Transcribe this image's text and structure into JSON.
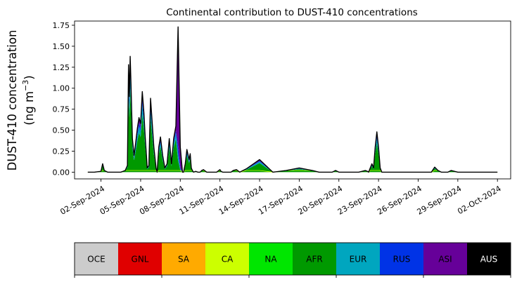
{
  "chart_data": {
    "type": "area",
    "stacked": true,
    "title": "Continental contribution to DUST-410 concentrations",
    "ylabel_line1": "DUST-410 concentration",
    "ylabel_line2_prefix": "(ng m",
    "ylabel_line2_sup": "−3",
    "ylabel_line2_suffix": ")",
    "xlabel": "",
    "ylim": [
      -0.08,
      1.8
    ],
    "yticks": [
      0.0,
      0.25,
      0.5,
      0.75,
      1.0,
      1.25,
      1.5,
      1.75
    ],
    "ytick_labels": [
      "0.00",
      "0.25",
      "0.50",
      "0.75",
      "1.00",
      "1.25",
      "1.50",
      "1.75"
    ],
    "x_start": "2024-08-31",
    "x_end": "2024-10-03",
    "xticks": [
      "2024-09-02",
      "2024-09-05",
      "2024-09-08",
      "2024-09-11",
      "2024-09-14",
      "2024-09-17",
      "2024-09-20",
      "2024-09-23",
      "2024-09-26",
      "2024-09-29",
      "2024-10-02"
    ],
    "xtick_labels": [
      "02-Sep-2024",
      "05-Sep-2024",
      "08-Sep-2024",
      "11-Sep-2024",
      "14-Sep-2024",
      "17-Sep-2024",
      "20-Sep-2024",
      "23-Sep-2024",
      "26-Sep-2024",
      "29-Sep-2024",
      "02-Oct-2024"
    ],
    "grid": false,
    "series_order": [
      "AFR",
      "EUR",
      "RUS",
      "ASI",
      "SA",
      "CA"
    ],
    "total": {
      "x": [
        "2024-09-01T00:00",
        "2024-09-01T12:00",
        "2024-09-02T00:00",
        "2024-09-02T03:00",
        "2024-09-02T06:00",
        "2024-09-02T12:00",
        "2024-09-03T00:00",
        "2024-09-03T12:00",
        "2024-09-03T20:00",
        "2024-09-04T00:00",
        "2024-09-04T02:00",
        "2024-09-04T03:30",
        "2024-09-04T05:00",
        "2024-09-04T06:30",
        "2024-09-04T09:00",
        "2024-09-04T12:00",
        "2024-09-04T15:00",
        "2024-09-04T18:00",
        "2024-09-04T21:00",
        "2024-09-05T00:00",
        "2024-09-05T03:00",
        "2024-09-05T06:00",
        "2024-09-05T08:00",
        "2024-09-05T10:00",
        "2024-09-05T12:00",
        "2024-09-05T15:00",
        "2024-09-05T18:00",
        "2024-09-06T00:00",
        "2024-09-06T04:00",
        "2024-09-06T06:00",
        "2024-09-06T09:00",
        "2024-09-06T12:00",
        "2024-09-06T16:00",
        "2024-09-06T20:00",
        "2024-09-07T00:00",
        "2024-09-07T04:00",
        "2024-09-07T08:00",
        "2024-09-07T12:00",
        "2024-09-07T16:00",
        "2024-09-07T20:00",
        "2024-09-08T00:00",
        "2024-09-08T04:00",
        "2024-09-08T06:00",
        "2024-09-08T09:00",
        "2024-09-08T12:00",
        "2024-09-08T16:00",
        "2024-09-08T18:00",
        "2024-09-08T20:00",
        "2024-09-08T22:00",
        "2024-09-09T00:00",
        "2024-09-09T04:00",
        "2024-09-09T08:00",
        "2024-09-09T12:00",
        "2024-09-09T15:00",
        "2024-09-09T18:00",
        "2024-09-10T00:00",
        "2024-09-10T06:00",
        "2024-09-10T12:00",
        "2024-09-10T18:00",
        "2024-09-11T00:00",
        "2024-09-11T02:00",
        "2024-09-11T05:00",
        "2024-09-11T08:00",
        "2024-09-11T11:00",
        "2024-09-11T14:00",
        "2024-09-11T17:00",
        "2024-09-11T20:00",
        "2024-09-12T00:00",
        "2024-09-12T06:00",
        "2024-09-12T12:00",
        "2024-09-13T00:00",
        "2024-09-14T00:00",
        "2024-09-15T00:00",
        "2024-09-16T00:00",
        "2024-09-17T00:00",
        "2024-09-18T00:00",
        "2024-09-18T12:00",
        "2024-09-18T18:00",
        "2024-09-19T00:00",
        "2024-09-19T06:00",
        "2024-09-19T12:00",
        "2024-09-19T18:00",
        "2024-09-20T00:00",
        "2024-09-20T06:00",
        "2024-09-20T12:00",
        "2024-09-21T00:00",
        "2024-09-21T12:00",
        "2024-09-22T00:00",
        "2024-09-22T04:00",
        "2024-09-22T06:00",
        "2024-09-22T09:00",
        "2024-09-22T12:00",
        "2024-09-22T15:00",
        "2024-09-22T18:00",
        "2024-09-22T21:00",
        "2024-09-23T00:00",
        "2024-09-23T03:00",
        "2024-09-23T06:00",
        "2024-09-23T12:00",
        "2024-09-23T18:00",
        "2024-09-24T00:00",
        "2024-09-25T00:00",
        "2024-09-25T12:00",
        "2024-09-25T18:00",
        "2024-09-26T00:00",
        "2024-09-26T12:00",
        "2024-09-27T00:00",
        "2024-09-27T06:00",
        "2024-09-27T12:00",
        "2024-09-27T18:00",
        "2024-09-28T00:00",
        "2024-09-28T06:00",
        "2024-09-28T12:00",
        "2024-09-29T00:00",
        "2024-09-30T00:00",
        "2024-10-01T00:00",
        "2024-10-02T00:00"
      ],
      "y": [
        0.0,
        0.0,
        0.01,
        0.1,
        0.02,
        0.0,
        0.0,
        0.0,
        0.02,
        0.08,
        1.28,
        0.9,
        1.38,
        1.05,
        0.4,
        0.2,
        0.35,
        0.52,
        0.65,
        0.58,
        0.96,
        0.7,
        0.45,
        0.25,
        0.05,
        0.08,
        0.88,
        0.3,
        0.05,
        0.0,
        0.3,
        0.42,
        0.2,
        0.05,
        0.1,
        0.4,
        0.1,
        0.4,
        0.55,
        1.73,
        0.3,
        0.0,
        0.0,
        0.1,
        0.27,
        0.15,
        0.22,
        0.05,
        0.02,
        0.0,
        0.01,
        0.0,
        0.0,
        0.02,
        0.03,
        0.0,
        0.0,
        0.0,
        0.0,
        0.03,
        0.01,
        0.0,
        0.0,
        0.0,
        0.0,
        0.0,
        0.0,
        0.02,
        0.03,
        0.0,
        0.04,
        0.15,
        0.0,
        0.02,
        0.05,
        0.02,
        0.0,
        0.0,
        0.0,
        0.0,
        0.0,
        0.02,
        0.0,
        0.0,
        0.0,
        0.0,
        0.0,
        0.02,
        0.01,
        0.0,
        0.05,
        0.1,
        0.05,
        0.3,
        0.48,
        0.3,
        0.05,
        0.0,
        0.0,
        0.0,
        0.0,
        0.0,
        0.0,
        0.0,
        0.0,
        0.0,
        0.0,
        0.06,
        0.02,
        0.0,
        0.0,
        0.0,
        0.02,
        0.0,
        0.0,
        0.0,
        0.0
      ]
    },
    "legend": [
      {
        "label": "OCE",
        "color": "#cccccc",
        "text_color": "#000000"
      },
      {
        "label": "GNL",
        "color": "#e00000",
        "text_color": "#000000"
      },
      {
        "label": "SA",
        "color": "#ffaa00",
        "text_color": "#000000"
      },
      {
        "label": "CA",
        "color": "#ccff00",
        "text_color": "#000000"
      },
      {
        "label": "NA",
        "color": "#00e600",
        "text_color": "#000000"
      },
      {
        "label": "AFR",
        "color": "#009900",
        "text_color": "#000000"
      },
      {
        "label": "EUR",
        "color": "#00a6bf",
        "text_color": "#000000"
      },
      {
        "label": "RUS",
        "color": "#0033e6",
        "text_color": "#000000"
      },
      {
        "label": "ASI",
        "color": "#660099",
        "text_color": "#000000"
      },
      {
        "label": "AUS",
        "color": "#000000",
        "text_color": "#ffffff"
      }
    ],
    "legend_placement": "bottom",
    "series": [
      {
        "name": "AFR",
        "color": "#009900",
        "values": []
      },
      {
        "name": "EUR",
        "color": "#00a6bf",
        "values": []
      },
      {
        "name": "RUS",
        "color": "#0033e6",
        "values": []
      },
      {
        "name": "ASI",
        "color": "#660099",
        "values": []
      }
    ]
  }
}
